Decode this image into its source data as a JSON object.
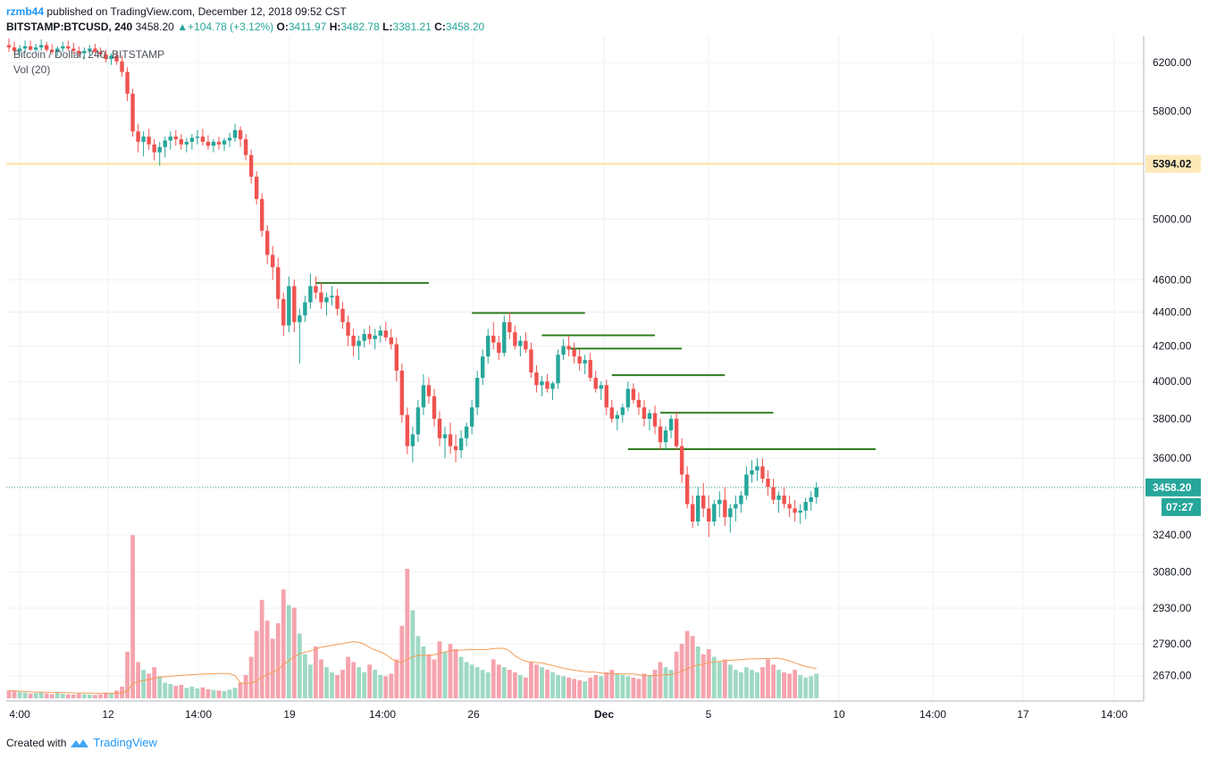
{
  "header": {
    "user": "rzmb44",
    "published": "published on TradingView.com, December 12, 2018 09:52 CST"
  },
  "ohlc": {
    "symbol": "BITSTAMP:BTCUSD, 240",
    "last": "3458.20",
    "change": "+104.78 (+3.12%)",
    "o_label": "O:",
    "o": "3411.97",
    "h_label": "H:",
    "h": "3482.78",
    "l_label": "L:",
    "l": "3381.21",
    "c_label": "C:",
    "c": "3458.20"
  },
  "legend": {
    "title": "Bitcoin / Dollar, 240, BITSTAMP",
    "vol": "Vol (20)"
  },
  "footer": {
    "created": "Created with",
    "brand": "TradingView"
  },
  "colors": {
    "up": "#26a69a",
    "down": "#ef5350",
    "up_vol": "#9fd9c3",
    "down_vol": "#f5a3ad",
    "resistance": "#2e7d1f",
    "highlight_line": "#fde9b8",
    "ma": "#f39c55",
    "last_price": "#26a69a"
  },
  "chart_data": {
    "type": "candlestick",
    "title": "Bitcoin / Dollar, 240, BITSTAMP",
    "y_scale": "log",
    "y_ticks": [
      "6200.00",
      "5800.00",
      "5000.00",
      "4600.00",
      "4400.00",
      "4200.00",
      "4000.00",
      "3800.00",
      "3600.00",
      "3240.00",
      "3080.00",
      "2930.00",
      "2790.00",
      "2670.00"
    ],
    "x_ticks": [
      "4:00",
      "12",
      "14:00",
      "19",
      "14:00",
      "26",
      "Dec",
      "5",
      "10",
      "14:00",
      "17",
      "14:00"
    ],
    "price_tags": {
      "line": "5394.02",
      "last": "3458.20",
      "countdown": "07:27"
    },
    "horizontal_lines": [
      {
        "price": 4580,
        "from_bar": 57,
        "to_bar": 78
      },
      {
        "price": 4395,
        "from_bar": 86,
        "to_bar": 107
      },
      {
        "price": 4262,
        "from_bar": 99,
        "to_bar": 120
      },
      {
        "price": 4185,
        "from_bar": 104,
        "to_bar": 125
      },
      {
        "price": 4035,
        "from_bar": 112,
        "to_bar": 133
      },
      {
        "price": 3832,
        "from_bar": 121,
        "to_bar": 142
      },
      {
        "price": 3645,
        "from_bar": 115,
        "to_bar": 161
      }
    ],
    "key_level": 5394.02,
    "bars": [
      [
        6350,
        6410,
        6290,
        6330,
        30
      ],
      [
        6330,
        6380,
        6270,
        6300,
        28
      ],
      [
        6300,
        6350,
        6260,
        6320,
        25
      ],
      [
        6320,
        6390,
        6290,
        6340,
        22
      ],
      [
        6340,
        6390,
        6300,
        6310,
        18
      ],
      [
        6310,
        6360,
        6280,
        6330,
        20
      ],
      [
        6330,
        6400,
        6300,
        6350,
        24
      ],
      [
        6350,
        6380,
        6290,
        6310,
        19
      ],
      [
        6310,
        6360,
        6270,
        6290,
        16
      ],
      [
        6290,
        6340,
        6250,
        6320,
        21
      ],
      [
        6320,
        6380,
        6290,
        6340,
        17
      ],
      [
        6340,
        6390,
        6300,
        6320,
        15
      ],
      [
        6320,
        6370,
        6270,
        6300,
        14
      ],
      [
        6300,
        6340,
        6250,
        6280,
        18
      ],
      [
        6280,
        6330,
        6230,
        6300,
        16
      ],
      [
        6300,
        6350,
        6260,
        6320,
        14
      ],
      [
        6320,
        6360,
        6280,
        6290,
        13
      ],
      [
        6290,
        6330,
        6250,
        6270,
        15
      ],
      [
        6270,
        6310,
        6200,
        6230,
        22
      ],
      [
        6230,
        6280,
        6180,
        6260,
        20
      ],
      [
        6260,
        6290,
        6180,
        6210,
        30
      ],
      [
        6210,
        6260,
        6080,
        6120,
        45
      ],
      [
        6120,
        6160,
        5880,
        5940,
        180
      ],
      [
        5940,
        5980,
        5600,
        5640,
        630
      ],
      [
        5640,
        5700,
        5480,
        5560,
        140
      ],
      [
        5560,
        5640,
        5450,
        5600,
        110
      ],
      [
        5600,
        5660,
        5500,
        5540,
        95
      ],
      [
        5540,
        5580,
        5420,
        5480,
        120
      ],
      [
        5480,
        5560,
        5380,
        5520,
        85
      ],
      [
        5520,
        5600,
        5440,
        5570,
        60
      ],
      [
        5570,
        5640,
        5500,
        5600,
        55
      ],
      [
        5600,
        5650,
        5530,
        5580,
        48
      ],
      [
        5580,
        5620,
        5500,
        5540,
        52
      ],
      [
        5540,
        5590,
        5480,
        5560,
        40
      ],
      [
        5560,
        5620,
        5500,
        5590,
        45
      ],
      [
        5590,
        5650,
        5540,
        5600,
        38
      ],
      [
        5600,
        5660,
        5530,
        5560,
        42
      ],
      [
        5560,
        5610,
        5500,
        5530,
        35
      ],
      [
        5530,
        5580,
        5480,
        5560,
        32
      ],
      [
        5560,
        5600,
        5500,
        5540,
        30
      ],
      [
        5540,
        5590,
        5490,
        5570,
        28
      ],
      [
        5570,
        5630,
        5520,
        5590,
        33
      ],
      [
        5590,
        5700,
        5560,
        5650,
        40
      ],
      [
        5650,
        5680,
        5520,
        5580,
        60
      ],
      [
        5580,
        5620,
        5420,
        5460,
        90
      ],
      [
        5460,
        5500,
        5250,
        5300,
        160
      ],
      [
        5300,
        5340,
        5100,
        5140,
        260
      ],
      [
        5140,
        5180,
        4880,
        4920,
        380
      ],
      [
        4920,
        4960,
        4700,
        4760,
        300
      ],
      [
        4760,
        4820,
        4600,
        4680,
        230
      ],
      [
        4680,
        4740,
        4420,
        4480,
        290
      ],
      [
        4480,
        4520,
        4260,
        4320,
        420
      ],
      [
        4320,
        4620,
        4280,
        4560,
        360
      ],
      [
        4560,
        4600,
        4280,
        4340,
        350
      ],
      [
        4340,
        4420,
        4100,
        4380,
        250
      ],
      [
        4380,
        4500,
        4340,
        4460,
        170
      ],
      [
        4460,
        4640,
        4420,
        4560,
        130
      ],
      [
        4560,
        4620,
        4480,
        4520,
        200
      ],
      [
        4520,
        4580,
        4420,
        4460,
        150
      ],
      [
        4460,
        4520,
        4380,
        4490,
        120
      ],
      [
        4490,
        4560,
        4440,
        4500,
        100
      ],
      [
        4500,
        4540,
        4380,
        4420,
        90
      ],
      [
        4420,
        4460,
        4300,
        4340,
        110
      ],
      [
        4340,
        4380,
        4200,
        4260,
        160
      ],
      [
        4260,
        4300,
        4140,
        4200,
        140
      ],
      [
        4200,
        4260,
        4120,
        4230,
        120
      ],
      [
        4230,
        4300,
        4190,
        4270,
        100
      ],
      [
        4270,
        4320,
        4210,
        4240,
        130
      ],
      [
        4240,
        4300,
        4180,
        4260,
        110
      ],
      [
        4260,
        4320,
        4220,
        4290,
        90
      ],
      [
        4290,
        4340,
        4230,
        4250,
        85
      ],
      [
        4250,
        4300,
        4180,
        4210,
        95
      ],
      [
        4210,
        4250,
        4000,
        4060,
        150
      ],
      [
        4060,
        4100,
        3780,
        3820,
        280
      ],
      [
        3820,
        3860,
        3620,
        3660,
        500
      ],
      [
        3660,
        3760,
        3580,
        3720,
        340
      ],
      [
        3720,
        3900,
        3680,
        3860,
        240
      ],
      [
        3860,
        4040,
        3820,
        3980,
        200
      ],
      [
        3980,
        4020,
        3880,
        3920,
        170
      ],
      [
        3920,
        3960,
        3760,
        3800,
        150
      ],
      [
        3800,
        3840,
        3660,
        3700,
        220
      ],
      [
        3700,
        3760,
        3600,
        3720,
        180
      ],
      [
        3720,
        3780,
        3620,
        3660,
        210
      ],
      [
        3660,
        3720,
        3580,
        3640,
        190
      ],
      [
        3640,
        3740,
        3600,
        3700,
        160
      ],
      [
        3700,
        3780,
        3660,
        3760,
        140
      ],
      [
        3760,
        3900,
        3720,
        3860,
        130
      ],
      [
        3860,
        4060,
        3820,
        4020,
        120
      ],
      [
        4020,
        4180,
        3980,
        4140,
        110
      ],
      [
        4140,
        4300,
        4100,
        4260,
        100
      ],
      [
        4260,
        4340,
        4180,
        4220,
        150
      ],
      [
        4220,
        4260,
        4120,
        4160,
        130
      ],
      [
        4160,
        4380,
        4140,
        4340,
        120
      ],
      [
        4340,
        4400,
        4240,
        4280,
        110
      ],
      [
        4280,
        4320,
        4180,
        4200,
        100
      ],
      [
        4200,
        4260,
        4140,
        4230,
        90
      ],
      [
        4230,
        4280,
        4160,
        4180,
        80
      ],
      [
        4180,
        4220,
        4020,
        4050,
        140
      ],
      [
        4050,
        4090,
        3940,
        3980,
        130
      ],
      [
        3980,
        4030,
        3920,
        4000,
        120
      ],
      [
        4000,
        4040,
        3940,
        3960,
        110
      ],
      [
        3960,
        4000,
        3900,
        3990,
        100
      ],
      [
        3990,
        4180,
        3960,
        4150,
        90
      ],
      [
        4150,
        4240,
        4120,
        4200,
        85
      ],
      [
        4200,
        4260,
        4140,
        4180,
        80
      ],
      [
        4180,
        4220,
        4100,
        4140,
        75
      ],
      [
        4140,
        4180,
        4060,
        4100,
        70
      ],
      [
        4100,
        4150,
        4040,
        4120,
        65
      ],
      [
        4120,
        4160,
        4000,
        4020,
        80
      ],
      [
        4020,
        4060,
        3940,
        3960,
        90
      ],
      [
        3960,
        4000,
        3900,
        3980,
        85
      ],
      [
        3980,
        4010,
        3820,
        3860,
        100
      ],
      [
        3860,
        3900,
        3780,
        3800,
        110
      ],
      [
        3800,
        3840,
        3740,
        3820,
        95
      ],
      [
        3820,
        3880,
        3780,
        3860,
        90
      ],
      [
        3860,
        4000,
        3840,
        3960,
        85
      ],
      [
        3960,
        3990,
        3880,
        3900,
        80
      ],
      [
        3900,
        3940,
        3820,
        3860,
        75
      ],
      [
        3860,
        3900,
        3760,
        3800,
        95
      ],
      [
        3800,
        3850,
        3740,
        3830,
        90
      ],
      [
        3830,
        3870,
        3720,
        3760,
        110
      ],
      [
        3760,
        3800,
        3640,
        3680,
        140
      ],
      [
        3680,
        3760,
        3640,
        3740,
        120
      ],
      [
        3740,
        3820,
        3700,
        3800,
        110
      ],
      [
        3800,
        3840,
        3640,
        3660,
        180
      ],
      [
        3660,
        3700,
        3480,
        3520,
        210
      ],
      [
        3520,
        3560,
        3360,
        3380,
        260
      ],
      [
        3380,
        3420,
        3270,
        3300,
        240
      ],
      [
        3300,
        3460,
        3280,
        3420,
        200
      ],
      [
        3420,
        3480,
        3320,
        3360,
        170
      ],
      [
        3360,
        3420,
        3230,
        3300,
        190
      ],
      [
        3300,
        3400,
        3280,
        3380,
        160
      ],
      [
        3380,
        3440,
        3320,
        3400,
        140
      ],
      [
        3400,
        3460,
        3280,
        3320,
        150
      ],
      [
        3320,
        3380,
        3250,
        3360,
        130
      ],
      [
        3360,
        3420,
        3300,
        3380,
        110
      ],
      [
        3380,
        3440,
        3340,
        3420,
        100
      ],
      [
        3420,
        3560,
        3400,
        3520,
        120
      ],
      [
        3520,
        3590,
        3480,
        3540,
        110
      ],
      [
        3540,
        3600,
        3490,
        3560,
        100
      ],
      [
        3560,
        3600,
        3480,
        3500,
        120
      ],
      [
        3500,
        3540,
        3420,
        3460,
        150
      ],
      [
        3460,
        3500,
        3380,
        3400,
        130
      ],
      [
        3400,
        3440,
        3340,
        3420,
        110
      ],
      [
        3420,
        3460,
        3360,
        3380,
        100
      ],
      [
        3380,
        3420,
        3320,
        3360,
        95
      ],
      [
        3360,
        3400,
        3300,
        3340,
        110
      ],
      [
        3340,
        3380,
        3290,
        3350,
        90
      ],
      [
        3350,
        3410,
        3310,
        3390,
        80
      ],
      [
        3390,
        3440,
        3350,
        3412,
        85
      ],
      [
        3412,
        3483,
        3381,
        3458,
        95
      ]
    ]
  }
}
